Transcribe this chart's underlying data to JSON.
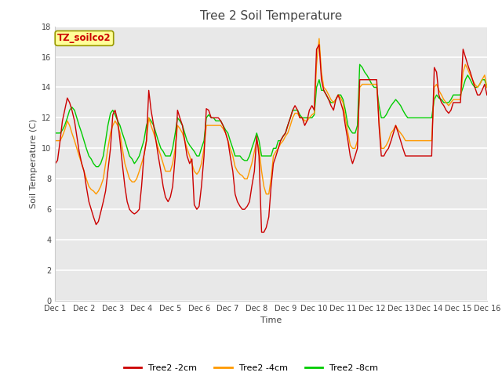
{
  "title": "Tree 2 Soil Temperature",
  "xlabel": "Time",
  "ylabel": "Soil Temperature (C)",
  "ylim": [
    0,
    18
  ],
  "yticks": [
    0,
    2,
    4,
    6,
    8,
    10,
    12,
    14,
    16,
    18
  ],
  "xlim": [
    0,
    15
  ],
  "xtick_labels": [
    "Dec 1",
    "Dec 2",
    "Dec 3",
    "Dec 4",
    "Dec 5",
    "Dec 6",
    "Dec 7",
    "Dec 8",
    "Dec 9",
    "Dec 10",
    "Dec 11",
    "Dec 12",
    "Dec 13",
    "Dec 14",
    "Dec 15",
    "Dec 16"
  ],
  "xtick_positions": [
    0,
    1,
    2,
    3,
    4,
    5,
    6,
    7,
    8,
    9,
    10,
    11,
    12,
    13,
    14,
    15
  ],
  "color_2cm": "#cc0000",
  "color_4cm": "#ff9900",
  "color_8cm": "#00cc00",
  "legend_label_2cm": "Tree2 -2cm",
  "legend_label_4cm": "Tree2 -4cm",
  "legend_label_8cm": "Tree2 -8cm",
  "annotation_text": "TZ_soilco2",
  "annotation_color": "#cc0000",
  "annotation_bg": "#ffff99",
  "annotation_border": "#999900",
  "bg_color": "#ffffff",
  "plot_bg_color": "#e8e8e8",
  "grid_color": "#ffffff",
  "title_fontsize": 11,
  "axis_label_fontsize": 8,
  "tick_fontsize": 7,
  "legend_fontsize": 8,
  "linewidth": 1.0,
  "t_2cm": [
    0.0,
    0.08,
    0.17,
    0.25,
    0.33,
    0.42,
    0.5,
    0.58,
    0.67,
    0.75,
    0.83,
    0.92,
    1.0,
    1.08,
    1.17,
    1.25,
    1.33,
    1.42,
    1.5,
    1.58,
    1.67,
    1.75,
    1.83,
    1.92,
    2.0,
    2.08,
    2.17,
    2.25,
    2.33,
    2.42,
    2.5,
    2.58,
    2.67,
    2.75,
    2.83,
    2.92,
    3.0,
    3.08,
    3.17,
    3.25,
    3.33,
    3.42,
    3.5,
    3.58,
    3.67,
    3.75,
    3.83,
    3.92,
    4.0,
    4.08,
    4.17,
    4.25,
    4.33,
    4.42,
    4.5,
    4.58,
    4.67,
    4.75,
    4.83,
    4.92,
    5.0,
    5.08,
    5.17,
    5.25,
    5.33,
    5.42,
    5.5,
    5.58,
    5.67,
    5.75,
    5.83,
    5.92,
    6.0,
    6.08,
    6.17,
    6.25,
    6.33,
    6.42,
    6.5,
    6.58,
    6.67,
    6.75,
    6.83,
    6.92,
    7.0,
    7.08,
    7.17,
    7.25,
    7.33,
    7.42,
    7.5,
    7.58,
    7.67,
    7.75,
    7.83,
    7.92,
    8.0,
    8.08,
    8.17,
    8.25,
    8.33,
    8.42,
    8.5,
    8.58,
    8.67,
    8.75,
    8.83,
    8.92,
    9.0,
    9.08,
    9.17,
    9.25,
    9.33,
    9.42,
    9.5,
    9.58,
    9.67,
    9.75,
    9.83,
    9.92,
    10.0,
    10.08,
    10.17,
    10.25,
    10.33,
    10.42,
    10.5,
    10.58,
    10.67,
    10.75,
    10.83,
    10.92,
    11.0,
    11.08,
    11.17,
    11.25,
    11.33,
    11.42,
    11.5,
    11.58,
    11.67,
    11.75,
    11.83,
    11.92,
    12.0,
    12.08,
    12.17,
    12.25,
    12.33,
    12.42,
    12.5,
    12.58,
    12.67,
    12.75,
    12.83,
    12.92,
    13.0,
    13.08,
    13.17,
    13.25,
    13.33,
    13.42,
    13.5,
    13.58,
    13.67,
    13.75,
    13.83,
    13.92,
    14.0,
    14.08,
    14.17,
    14.25,
    14.33,
    14.42,
    14.5,
    14.58,
    14.67,
    14.75,
    14.83,
    14.92,
    15.0
  ],
  "v_2cm": [
    9.0,
    9.2,
    10.5,
    11.8,
    12.5,
    13.3,
    13.0,
    12.5,
    11.8,
    10.8,
    9.8,
    9.0,
    8.5,
    7.5,
    6.5,
    6.0,
    5.5,
    5.0,
    5.2,
    5.8,
    6.5,
    7.2,
    8.5,
    10.0,
    12.2,
    12.5,
    11.8,
    10.5,
    9.0,
    7.5,
    6.5,
    6.0,
    5.8,
    5.7,
    5.8,
    6.0,
    7.5,
    9.5,
    10.5,
    13.8,
    12.5,
    11.5,
    10.5,
    9.5,
    8.5,
    7.5,
    6.8,
    6.5,
    6.8,
    7.5,
    9.5,
    12.5,
    12.0,
    11.5,
    10.5,
    9.5,
    9.0,
    9.3,
    6.3,
    6.0,
    6.2,
    7.5,
    9.5,
    12.6,
    12.5,
    12.0,
    12.0,
    12.0,
    12.0,
    11.8,
    11.5,
    11.0,
    10.5,
    9.5,
    8.5,
    7.0,
    6.5,
    6.2,
    6.0,
    6.0,
    6.2,
    6.5,
    7.5,
    8.5,
    10.8,
    9.5,
    4.5,
    4.5,
    4.8,
    5.5,
    7.5,
    9.0,
    9.5,
    10.0,
    10.5,
    10.8,
    11.0,
    11.5,
    12.0,
    12.5,
    12.8,
    12.5,
    12.0,
    12.0,
    11.5,
    11.8,
    12.5,
    12.8,
    12.5,
    16.5,
    16.8,
    14.5,
    13.8,
    13.5,
    13.2,
    12.8,
    12.5,
    13.2,
    13.5,
    13.0,
    12.5,
    11.5,
    10.5,
    9.5,
    9.0,
    9.5,
    10.0,
    14.5,
    14.5,
    14.5,
    14.5,
    14.5,
    14.5,
    14.5,
    14.5,
    11.5,
    9.5,
    9.5,
    9.8,
    10.0,
    10.5,
    11.0,
    11.5,
    11.0,
    10.5,
    10.0,
    9.5,
    9.5,
    9.5,
    9.5,
    9.5,
    9.5,
    9.5,
    9.5,
    9.5,
    9.5,
    9.5,
    9.5,
    15.3,
    15.0,
    13.5,
    13.0,
    12.8,
    12.5,
    12.3,
    12.5,
    13.0,
    13.0,
    13.0,
    13.0,
    16.5,
    16.0,
    15.5,
    15.0,
    14.5,
    14.0,
    13.5,
    13.5,
    13.8,
    14.2,
    13.5
  ],
  "t_4cm": [
    0.0,
    0.08,
    0.17,
    0.25,
    0.33,
    0.42,
    0.5,
    0.58,
    0.67,
    0.75,
    0.83,
    0.92,
    1.0,
    1.08,
    1.17,
    1.25,
    1.33,
    1.42,
    1.5,
    1.58,
    1.67,
    1.75,
    1.83,
    1.92,
    2.0,
    2.08,
    2.17,
    2.25,
    2.33,
    2.42,
    2.5,
    2.58,
    2.67,
    2.75,
    2.83,
    2.92,
    3.0,
    3.08,
    3.17,
    3.25,
    3.33,
    3.42,
    3.5,
    3.58,
    3.67,
    3.75,
    3.83,
    3.92,
    4.0,
    4.08,
    4.17,
    4.25,
    4.33,
    4.42,
    4.5,
    4.58,
    4.67,
    4.75,
    4.83,
    4.92,
    5.0,
    5.08,
    5.17,
    5.25,
    5.33,
    5.42,
    5.5,
    5.58,
    5.67,
    5.75,
    5.83,
    5.92,
    6.0,
    6.08,
    6.17,
    6.25,
    6.33,
    6.42,
    6.5,
    6.58,
    6.67,
    6.75,
    6.83,
    6.92,
    7.0,
    7.08,
    7.17,
    7.25,
    7.33,
    7.42,
    7.5,
    7.58,
    7.67,
    7.75,
    7.83,
    7.92,
    8.0,
    8.08,
    8.17,
    8.25,
    8.33,
    8.42,
    8.5,
    8.58,
    8.67,
    8.75,
    8.83,
    8.92,
    9.0,
    9.08,
    9.17,
    9.25,
    9.33,
    9.42,
    9.5,
    9.58,
    9.67,
    9.75,
    9.83,
    9.92,
    10.0,
    10.08,
    10.17,
    10.25,
    10.33,
    10.42,
    10.5,
    10.58,
    10.67,
    10.75,
    10.83,
    10.92,
    11.0,
    11.08,
    11.17,
    11.25,
    11.33,
    11.42,
    11.5,
    11.58,
    11.67,
    11.75,
    11.83,
    11.92,
    12.0,
    12.08,
    12.17,
    12.25,
    12.33,
    12.42,
    12.5,
    12.58,
    12.67,
    12.75,
    12.83,
    12.92,
    13.0,
    13.08,
    13.17,
    13.25,
    13.33,
    13.42,
    13.5,
    13.58,
    13.67,
    13.75,
    13.83,
    13.92,
    14.0,
    14.08,
    14.17,
    14.25,
    14.33,
    14.42,
    14.5,
    14.58,
    14.67,
    14.75,
    14.83,
    14.92,
    15.0
  ],
  "v_4cm": [
    10.5,
    10.5,
    10.5,
    10.8,
    11.2,
    11.8,
    11.5,
    11.0,
    10.5,
    10.0,
    9.5,
    9.0,
    8.5,
    8.0,
    7.5,
    7.3,
    7.2,
    7.0,
    7.2,
    7.5,
    8.0,
    9.0,
    10.0,
    11.0,
    11.5,
    11.8,
    11.5,
    11.0,
    10.0,
    9.0,
    8.5,
    8.0,
    7.8,
    7.8,
    8.0,
    8.5,
    9.0,
    9.5,
    10.5,
    12.0,
    11.5,
    11.0,
    10.5,
    10.0,
    9.5,
    9.0,
    8.5,
    8.5,
    8.5,
    9.0,
    10.0,
    11.5,
    11.3,
    11.0,
    10.5,
    10.0,
    9.5,
    9.0,
    8.5,
    8.3,
    8.5,
    9.0,
    10.0,
    11.5,
    11.5,
    11.5,
    11.5,
    11.5,
    11.5,
    11.5,
    11.3,
    11.0,
    10.5,
    10.0,
    9.5,
    8.8,
    8.5,
    8.3,
    8.2,
    8.0,
    8.0,
    8.5,
    9.0,
    9.8,
    10.5,
    10.0,
    8.5,
    7.5,
    7.0,
    7.0,
    8.0,
    9.5,
    9.8,
    10.0,
    10.3,
    10.5,
    10.8,
    11.0,
    11.5,
    12.0,
    12.3,
    12.3,
    12.0,
    12.0,
    11.8,
    11.8,
    12.0,
    12.2,
    12.3,
    15.5,
    17.2,
    15.0,
    14.0,
    13.8,
    13.5,
    13.2,
    13.0,
    13.2,
    13.5,
    13.3,
    13.0,
    12.0,
    11.0,
    10.2,
    10.0,
    10.0,
    10.5,
    14.0,
    14.2,
    14.2,
    14.2,
    14.2,
    14.2,
    14.2,
    14.2,
    11.8,
    10.0,
    10.0,
    10.2,
    10.5,
    11.0,
    11.2,
    11.5,
    11.2,
    11.0,
    10.8,
    10.5,
    10.5,
    10.5,
    10.5,
    10.5,
    10.5,
    10.5,
    10.5,
    10.5,
    10.5,
    10.5,
    10.5,
    14.0,
    14.2,
    13.8,
    13.5,
    13.2,
    13.0,
    12.8,
    13.0,
    13.2,
    13.2,
    13.2,
    13.2,
    15.0,
    15.5,
    15.2,
    14.8,
    14.5,
    14.2,
    14.0,
    14.2,
    14.5,
    14.8,
    14.0
  ],
  "t_8cm": [
    0.0,
    0.08,
    0.17,
    0.25,
    0.33,
    0.42,
    0.5,
    0.58,
    0.67,
    0.75,
    0.83,
    0.92,
    1.0,
    1.08,
    1.17,
    1.25,
    1.33,
    1.42,
    1.5,
    1.58,
    1.67,
    1.75,
    1.83,
    1.92,
    2.0,
    2.08,
    2.17,
    2.25,
    2.33,
    2.42,
    2.5,
    2.58,
    2.67,
    2.75,
    2.83,
    2.92,
    3.0,
    3.08,
    3.17,
    3.25,
    3.33,
    3.42,
    3.5,
    3.58,
    3.67,
    3.75,
    3.83,
    3.92,
    4.0,
    4.08,
    4.17,
    4.25,
    4.33,
    4.42,
    4.5,
    4.58,
    4.67,
    4.75,
    4.83,
    4.92,
    5.0,
    5.08,
    5.17,
    5.25,
    5.33,
    5.42,
    5.5,
    5.58,
    5.67,
    5.75,
    5.83,
    5.92,
    6.0,
    6.08,
    6.17,
    6.25,
    6.33,
    6.42,
    6.5,
    6.58,
    6.67,
    6.75,
    6.83,
    6.92,
    7.0,
    7.08,
    7.17,
    7.25,
    7.33,
    7.42,
    7.5,
    7.58,
    7.67,
    7.75,
    7.83,
    7.92,
    8.0,
    8.08,
    8.17,
    8.25,
    8.33,
    8.42,
    8.5,
    8.58,
    8.67,
    8.75,
    8.83,
    8.92,
    9.0,
    9.08,
    9.17,
    9.25,
    9.33,
    9.42,
    9.5,
    9.58,
    9.67,
    9.75,
    9.83,
    9.92,
    10.0,
    10.08,
    10.17,
    10.25,
    10.33,
    10.42,
    10.5,
    10.58,
    10.67,
    10.75,
    10.83,
    10.92,
    11.0,
    11.08,
    11.17,
    11.25,
    11.33,
    11.42,
    11.5,
    11.58,
    11.67,
    11.75,
    11.83,
    11.92,
    12.0,
    12.08,
    12.17,
    12.25,
    12.33,
    12.42,
    12.5,
    12.58,
    12.67,
    12.75,
    12.83,
    12.92,
    13.0,
    13.08,
    13.17,
    13.25,
    13.33,
    13.42,
    13.5,
    13.58,
    13.67,
    13.75,
    13.83,
    13.92,
    14.0,
    14.08,
    14.17,
    14.25,
    14.33,
    14.42,
    14.5,
    14.58,
    14.67,
    14.75,
    14.83,
    14.92,
    15.0
  ],
  "v_8cm": [
    11.0,
    11.0,
    11.0,
    11.2,
    11.5,
    12.0,
    12.5,
    12.7,
    12.5,
    12.0,
    11.5,
    11.0,
    10.5,
    10.0,
    9.5,
    9.3,
    9.0,
    8.8,
    8.8,
    9.0,
    9.5,
    10.5,
    11.5,
    12.3,
    12.5,
    12.2,
    11.8,
    11.5,
    11.0,
    10.5,
    10.0,
    9.5,
    9.3,
    9.0,
    9.2,
    9.5,
    10.0,
    10.5,
    11.5,
    12.0,
    11.8,
    11.5,
    11.0,
    10.5,
    10.0,
    9.8,
    9.5,
    9.5,
    9.5,
    10.0,
    11.0,
    12.0,
    11.8,
    11.5,
    11.0,
    10.5,
    10.2,
    10.0,
    9.8,
    9.5,
    9.5,
    10.0,
    10.5,
    12.0,
    12.2,
    12.0,
    12.0,
    11.8,
    11.8,
    11.8,
    11.5,
    11.2,
    11.0,
    10.5,
    10.0,
    9.5,
    9.5,
    9.5,
    9.3,
    9.2,
    9.2,
    9.5,
    10.0,
    10.5,
    11.0,
    10.5,
    9.5,
    9.5,
    9.5,
    9.5,
    9.5,
    10.0,
    10.0,
    10.5,
    10.5,
    10.8,
    11.0,
    11.5,
    12.0,
    12.5,
    12.5,
    12.5,
    12.2,
    12.0,
    12.0,
    12.0,
    12.0,
    12.0,
    12.2,
    14.0,
    14.5,
    13.8,
    13.8,
    13.5,
    13.2,
    13.0,
    13.0,
    13.2,
    13.5,
    13.5,
    13.2,
    12.5,
    11.5,
    11.2,
    11.0,
    11.0,
    11.5,
    15.5,
    15.3,
    15.0,
    14.8,
    14.5,
    14.2,
    14.0,
    14.0,
    12.8,
    12.0,
    12.0,
    12.2,
    12.5,
    12.8,
    13.0,
    13.2,
    13.0,
    12.8,
    12.5,
    12.2,
    12.0,
    12.0,
    12.0,
    12.0,
    12.0,
    12.0,
    12.0,
    12.0,
    12.0,
    12.0,
    12.0,
    13.2,
    13.5,
    13.3,
    13.2,
    13.0,
    13.0,
    13.0,
    13.2,
    13.5,
    13.5,
    13.5,
    13.5,
    14.0,
    14.5,
    14.8,
    14.5,
    14.2,
    14.0,
    14.0,
    14.2,
    14.5,
    14.5,
    14.0
  ]
}
